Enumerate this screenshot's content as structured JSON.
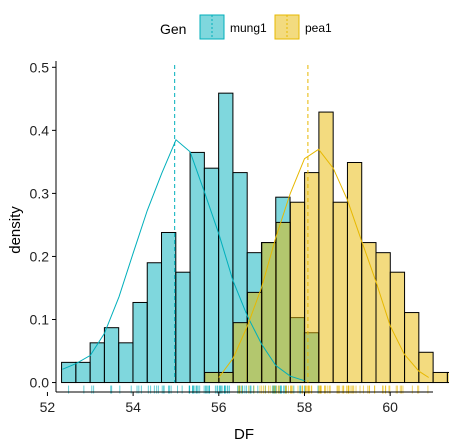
{
  "chart_data": {
    "type": "histogram",
    "xlabel": "DF",
    "ylabel": "density",
    "xlim": [
      52.2,
      61.0
    ],
    "ylim": [
      -0.015,
      0.51
    ],
    "x_ticks": [
      52,
      54,
      56,
      58,
      60
    ],
    "y_ticks": [
      0.0,
      0.1,
      0.2,
      0.3,
      0.4,
      0.5
    ],
    "x_tick_labels": [
      "52",
      "54",
      "56",
      "58",
      "60"
    ],
    "y_tick_labels": [
      "0.0",
      "0.1",
      "0.2",
      "0.3",
      "0.4",
      "0.5"
    ],
    "grid": false,
    "legend": {
      "title": "Gen",
      "position": "top"
    },
    "bin_width": 0.3333,
    "series": [
      {
        "name": "mung1",
        "color": "#00AFBB",
        "bins_start": 52.33,
        "densities": [
          0.032,
          0.032,
          0.063,
          0.087,
          0.063,
          0.127,
          0.19,
          0.238,
          0.175,
          0.365,
          0.34,
          0.459,
          0.333,
          0.206,
          0.222,
          0.294,
          0.103,
          0.079,
          0.0
        ],
        "density_curve": [
          [
            52.35,
            0.021
          ],
          [
            52.67,
            0.03
          ],
          [
            53.0,
            0.043
          ],
          [
            53.33,
            0.078
          ],
          [
            53.67,
            0.136
          ],
          [
            54.0,
            0.205
          ],
          [
            54.33,
            0.273
          ],
          [
            54.67,
            0.332
          ],
          [
            55.0,
            0.385
          ],
          [
            55.33,
            0.366
          ],
          [
            55.67,
            0.301
          ],
          [
            56.0,
            0.236
          ],
          [
            56.33,
            0.162
          ],
          [
            56.67,
            0.105
          ],
          [
            57.0,
            0.061
          ],
          [
            57.33,
            0.027
          ],
          [
            57.67,
            0.01
          ],
          [
            58.0,
            0.003
          ]
        ],
        "mean": 54.97
      },
      {
        "name": "pea1",
        "color": "#E7B800",
        "bins_start": 55.67,
        "densities": [
          0.016,
          0.016,
          0.095,
          0.143,
          0.222,
          0.254,
          0.286,
          0.333,
          0.429,
          0.286,
          0.349,
          0.222,
          0.206,
          0.175,
          0.111,
          0.048,
          0.016,
          0.016,
          0.016
        ],
        "density_curve": [
          [
            56.0,
            0.008
          ],
          [
            56.33,
            0.038
          ],
          [
            56.67,
            0.09
          ],
          [
            57.0,
            0.151
          ],
          [
            57.33,
            0.23
          ],
          [
            57.67,
            0.3
          ],
          [
            58.0,
            0.355
          ],
          [
            58.33,
            0.37
          ],
          [
            58.67,
            0.34
          ],
          [
            59.0,
            0.29
          ],
          [
            59.33,
            0.225
          ],
          [
            59.67,
            0.16
          ],
          [
            60.0,
            0.09
          ],
          [
            60.33,
            0.045
          ],
          [
            60.67,
            0.018
          ],
          [
            60.9,
            0.008
          ]
        ],
        "mean": 58.08
      }
    ]
  }
}
